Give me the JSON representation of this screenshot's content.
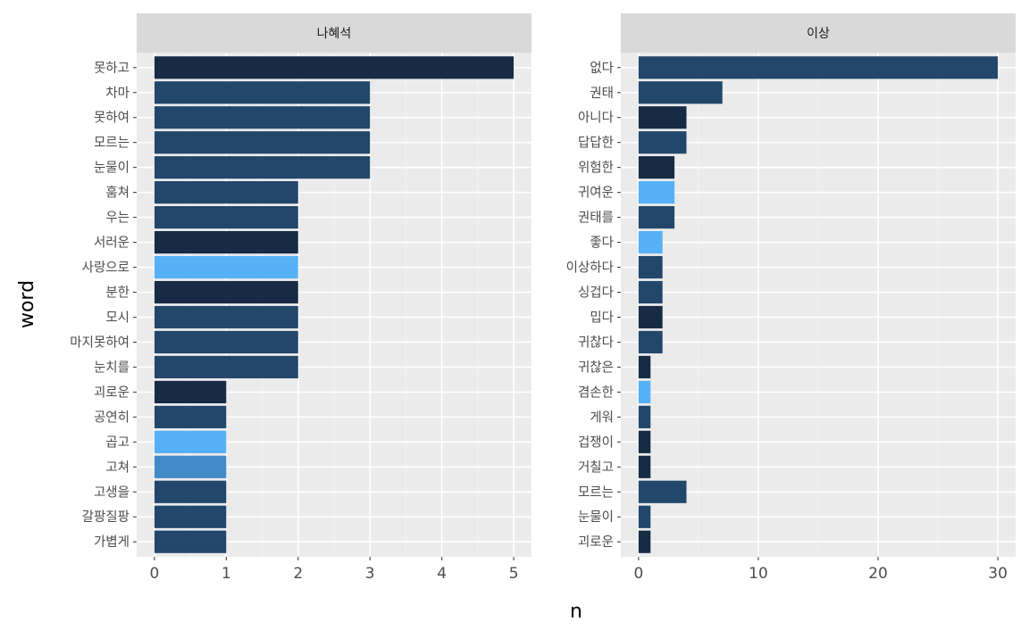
{
  "chart_data": {
    "type": "bar",
    "orientation": "horizontal",
    "xlabel": "n",
    "ylabel": "word",
    "grid": true,
    "facets": [
      {
        "title": "나혜석",
        "xlim": [
          0,
          5
        ],
        "xticks": [
          0,
          1,
          2,
          3,
          4,
          5
        ],
        "bars": [
          {
            "word": "못하고",
            "n": 5,
            "color": "#172B45"
          },
          {
            "word": "차마",
            "n": 3,
            "color": "#23476B"
          },
          {
            "word": "못하여",
            "n": 3,
            "color": "#23476B"
          },
          {
            "word": "모르는",
            "n": 3,
            "color": "#23476B"
          },
          {
            "word": "눈물이",
            "n": 3,
            "color": "#23476B"
          },
          {
            "word": "훔쳐",
            "n": 2,
            "color": "#23476B"
          },
          {
            "word": "우는",
            "n": 2,
            "color": "#23476B"
          },
          {
            "word": "서러운",
            "n": 2,
            "color": "#172B45"
          },
          {
            "word": "사랑으로",
            "n": 2,
            "color": "#56B1F7"
          },
          {
            "word": "분한",
            "n": 2,
            "color": "#172B45"
          },
          {
            "word": "모시",
            "n": 2,
            "color": "#23476B"
          },
          {
            "word": "마지못하여",
            "n": 2,
            "color": "#23476B"
          },
          {
            "word": "눈치를",
            "n": 2,
            "color": "#23476B"
          },
          {
            "word": "괴로운",
            "n": 1,
            "color": "#172B45"
          },
          {
            "word": "공연히",
            "n": 1,
            "color": "#23476B"
          },
          {
            "word": "곱고",
            "n": 1,
            "color": "#56B1F7"
          },
          {
            "word": "고쳐",
            "n": 1,
            "color": "#4489C8"
          },
          {
            "word": "고생을",
            "n": 1,
            "color": "#23476B"
          },
          {
            "word": "갈팡질팡",
            "n": 1,
            "color": "#23476B"
          },
          {
            "word": "가볍게",
            "n": 1,
            "color": "#23476B"
          }
        ]
      },
      {
        "title": "이상",
        "xlim": [
          0,
          30
        ],
        "xticks": [
          0,
          10,
          20,
          30
        ],
        "bars": [
          {
            "word": "없다",
            "n": 30,
            "color": "#23476B"
          },
          {
            "word": "권태",
            "n": 7,
            "color": "#23476B"
          },
          {
            "word": "아니다",
            "n": 4,
            "color": "#172B45"
          },
          {
            "word": "답답한",
            "n": 4,
            "color": "#23476B"
          },
          {
            "word": "위험한",
            "n": 3,
            "color": "#172B45"
          },
          {
            "word": "귀여운",
            "n": 3,
            "color": "#56B1F7"
          },
          {
            "word": "권태를",
            "n": 3,
            "color": "#23476B"
          },
          {
            "word": "좋다",
            "n": 2,
            "color": "#56B1F7"
          },
          {
            "word": "이상하다",
            "n": 2,
            "color": "#23476B"
          },
          {
            "word": "싱겁다",
            "n": 2,
            "color": "#23476B"
          },
          {
            "word": "밉다",
            "n": 2,
            "color": "#172B45"
          },
          {
            "word": "귀찮다",
            "n": 2,
            "color": "#23476B"
          },
          {
            "word": "귀찮은",
            "n": 1,
            "color": "#172B45"
          },
          {
            "word": "겸손한",
            "n": 1,
            "color": "#56B1F7"
          },
          {
            "word": "게워",
            "n": 1,
            "color": "#23476B"
          },
          {
            "word": "겁쟁이",
            "n": 1,
            "color": "#172B45"
          },
          {
            "word": "거칠고",
            "n": 1,
            "color": "#172B45"
          },
          {
            "word": "모르는",
            "n": 4,
            "color": "#23476B"
          },
          {
            "word": "눈물이",
            "n": 1,
            "color": "#23476B"
          },
          {
            "word": "괴로운",
            "n": 1,
            "color": "#172B45"
          }
        ]
      }
    ]
  }
}
